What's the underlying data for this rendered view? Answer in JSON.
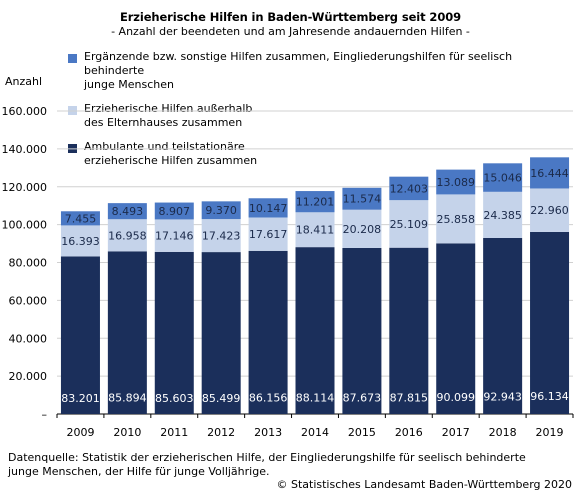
{
  "title": "Erzieherische Hilfen in Baden-Württemberg seit 2009",
  "subtitle": "- Anzahl der beendeten und am Jahresende andauernden Hilfen -",
  "footnote": "Datenquelle: Statistik der erzieherischen Hilfe, der Eingliederungshilfe für seelisch behinderte junge Menschen, der Hilfe für junge Volljährige.",
  "copyright": "© Statistisches Landesamt Baden-Württemberg 2020",
  "colors": {
    "ambulant": "#1b2f5b",
    "ausserhalb": "#c5d3ea",
    "ergaenzend": "#4a78c4",
    "grid": "#d0d0d0",
    "axis": "#000000"
  },
  "chart_data": {
    "type": "bar",
    "stacked": true,
    "title": "Erzieherische Hilfen in Baden-Württemberg seit 2009",
    "subtitle": "- Anzahl der beendeten und am Jahresende andauernden Hilfen -",
    "ylabel": "Anzahl",
    "xlabel": "",
    "ylim": [
      0,
      160000
    ],
    "yticks": [
      0,
      20000,
      40000,
      60000,
      80000,
      100000,
      120000,
      140000,
      160000
    ],
    "ytick_labels": [
      "–",
      "20.000",
      "40.000",
      "60.000",
      "80.000",
      "100.000",
      "120.000",
      "140.000",
      "160.000"
    ],
    "grid": true,
    "legend_position": "top-left",
    "categories": [
      "2009",
      "2010",
      "2011",
      "2012",
      "2013",
      "2014",
      "2015",
      "2016",
      "2017",
      "2018",
      "2019"
    ],
    "series": [
      {
        "name": "Ambulante und teilstationäre erzieherische Hilfen zusammen",
        "color": "#1b2f5b",
        "values": [
          83201,
          85894,
          85603,
          85499,
          86156,
          88114,
          87673,
          87815,
          90099,
          92943,
          96134
        ],
        "labels": [
          "83.201",
          "85.894",
          "85.603",
          "85.499",
          "86.156",
          "88.114",
          "87.673",
          "87.815",
          "90.099",
          "92.943",
          "96.134"
        ]
      },
      {
        "name": "Erzieherische Hilfen außerhalb des Elternhauses zusammen",
        "color": "#c5d3ea",
        "values": [
          16393,
          16958,
          17146,
          17423,
          17617,
          18411,
          20208,
          25109,
          25858,
          24385,
          22960
        ],
        "labels": [
          "16.393",
          "16.958",
          "17.146",
          "17.423",
          "17.617",
          "18.411",
          "20.208",
          "25.109",
          "25.858",
          "24.385",
          "22.960"
        ]
      },
      {
        "name": "Ergänzende bzw. sonstige Hilfen zusammen, Eingliederungshilfen für seelisch behinderte junge Menschen",
        "color": "#4a78c4",
        "values": [
          7455,
          8493,
          8907,
          9370,
          10147,
          11201,
          11574,
          12403,
          13089,
          15046,
          16444
        ],
        "labels": [
          "7.455",
          "8.493",
          "8.907",
          "9.370",
          "10.147",
          "11.201",
          "11.574",
          "12.403",
          "13.089",
          "15.046",
          "16.444"
        ]
      }
    ],
    "legend": [
      {
        "line1": "Ergänzende bzw. sonstige Hilfen zusammen, Eingliederungshilfen für seelisch behinderte",
        "line2": "junge Menschen",
        "color": "#4a78c4"
      },
      {
        "line1": "Erzieherische Hilfen außerhalb",
        "line2": "des Elternhauses zusammen",
        "color": "#c5d3ea"
      },
      {
        "line1": "Ambulante und teilstationäre",
        "line2": "erzieherische Hilfen zusammen",
        "color": "#1b2f5b"
      }
    ]
  }
}
